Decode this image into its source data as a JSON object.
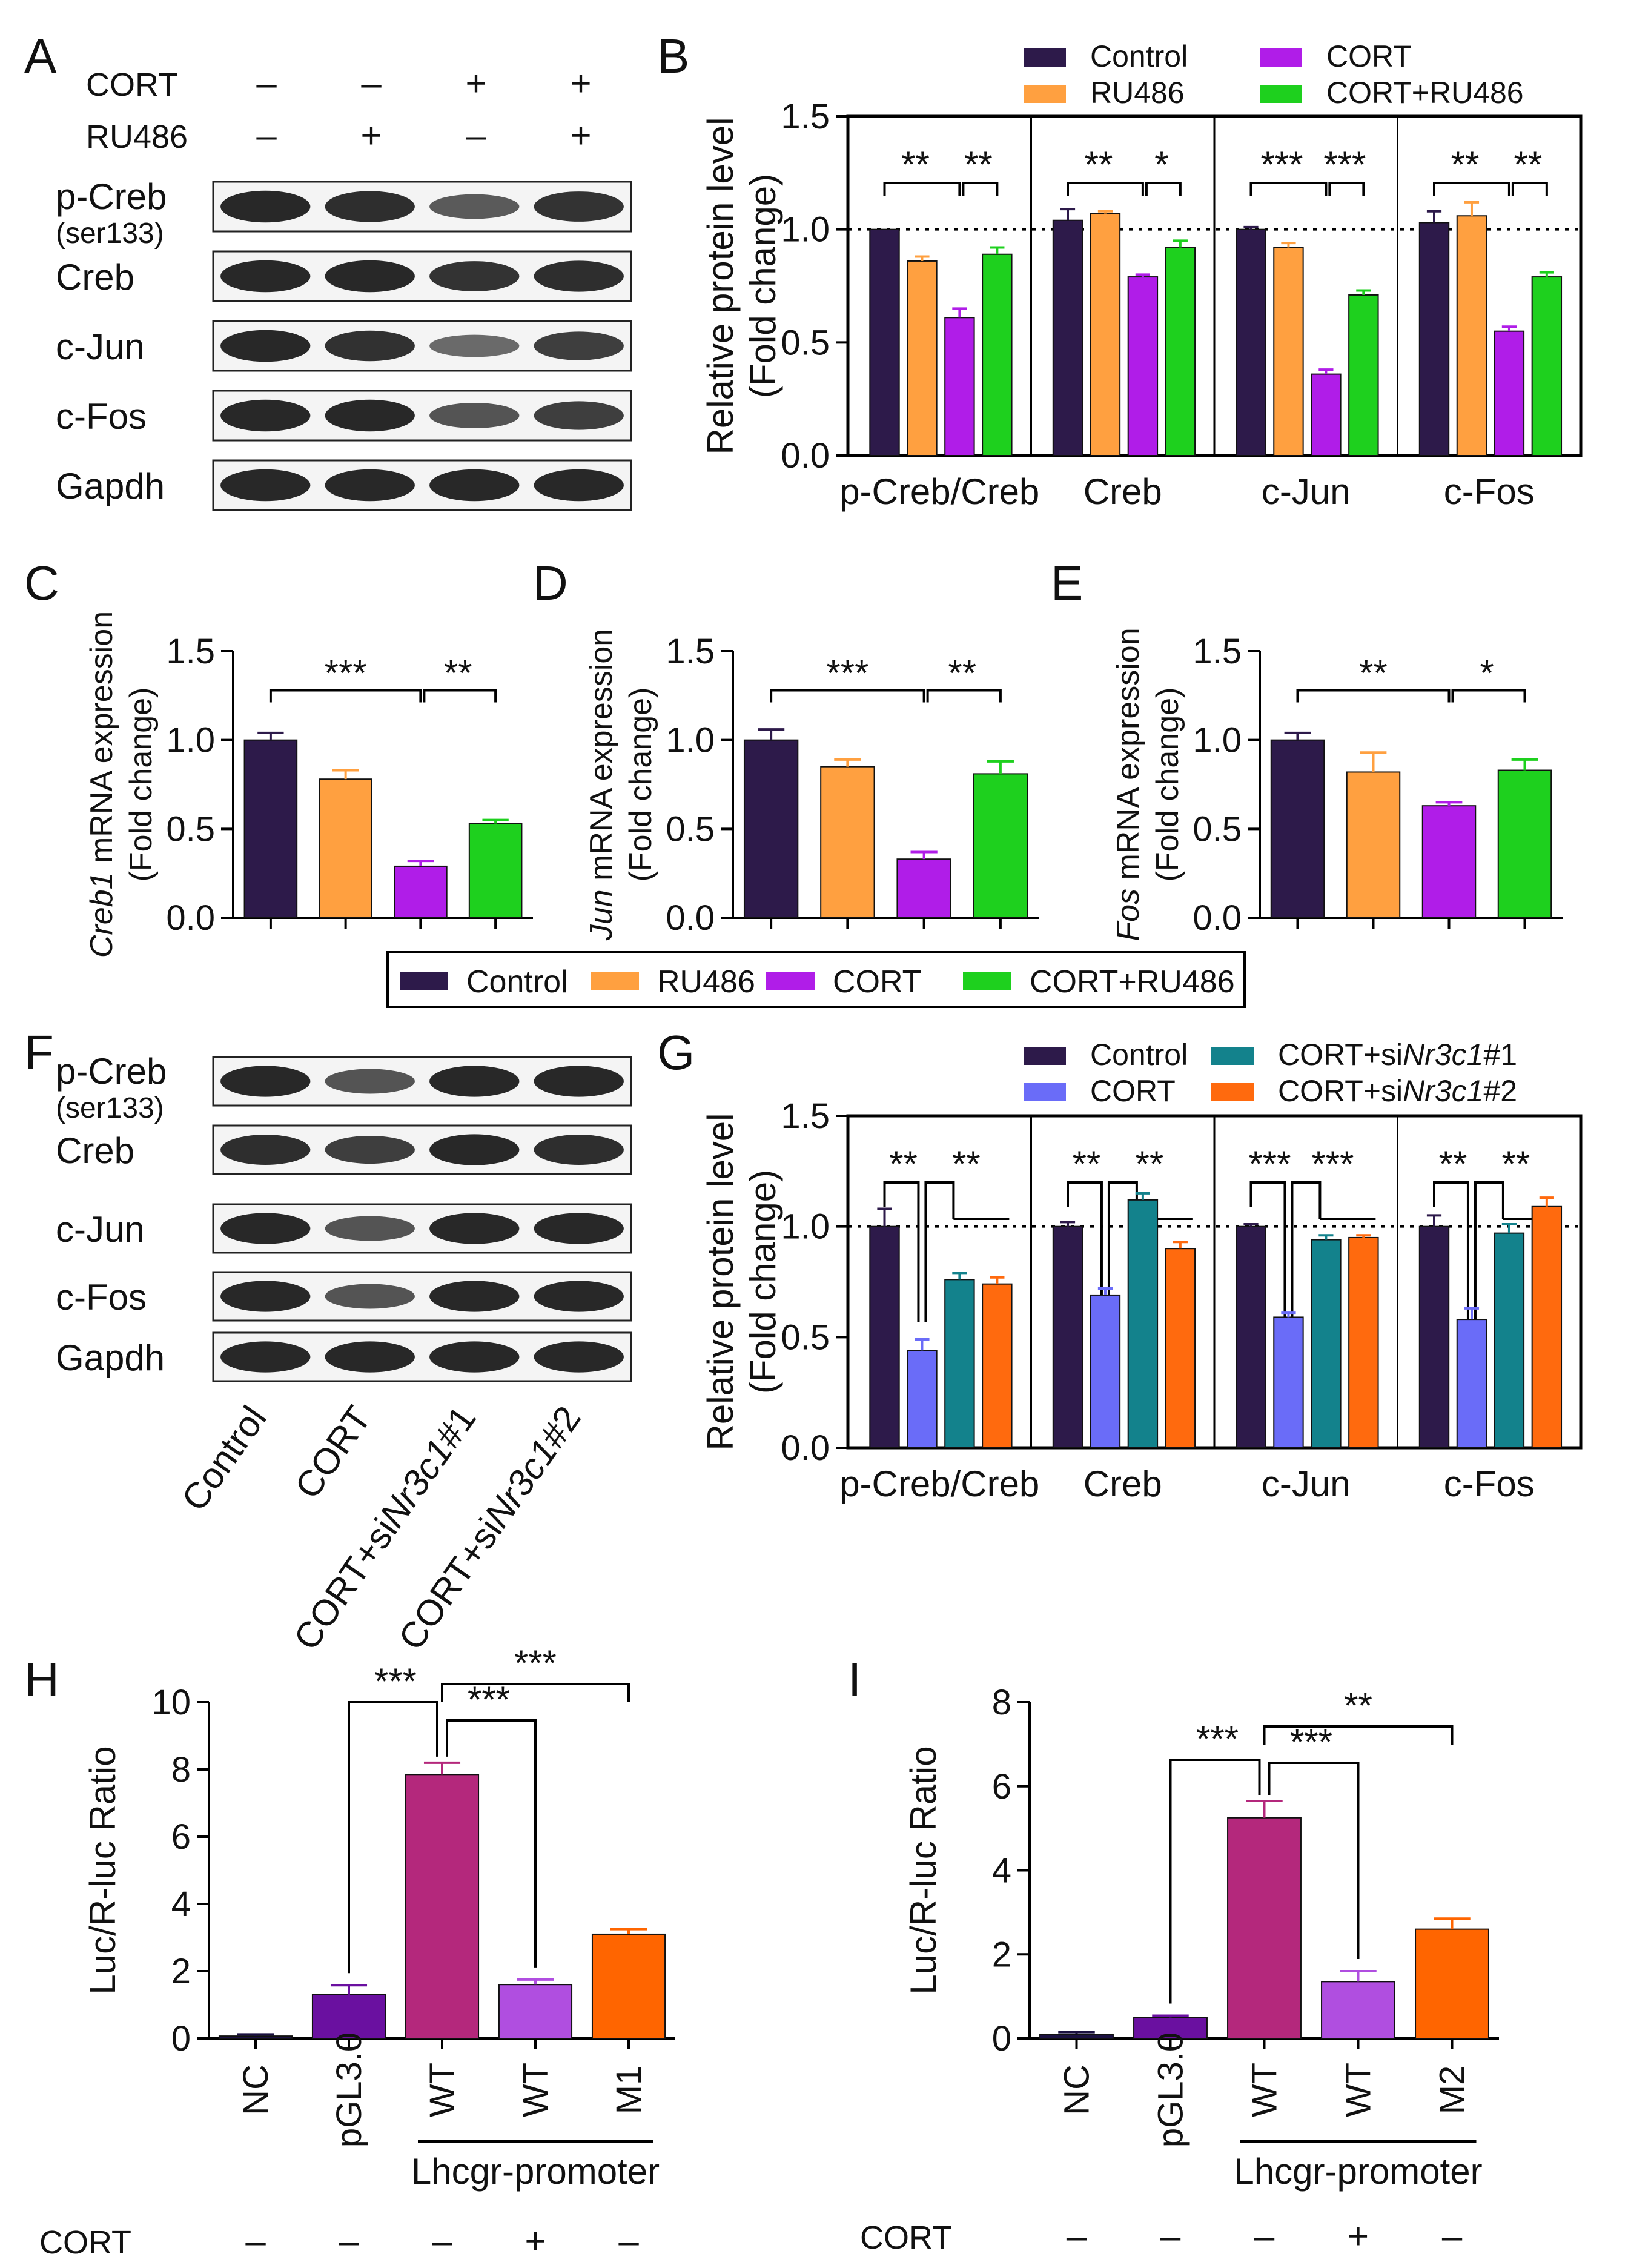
{
  "panel_letters": [
    "A",
    "B",
    "C",
    "D",
    "E",
    "F",
    "G",
    "H",
    "I"
  ],
  "colors": {
    "control": "#2d1a4a",
    "ru486": "#ffa040",
    "cort_purple": "#b01de8",
    "cort_ru486": "#1ed01e",
    "cort_blue": "#6a6cf8",
    "si1": "#13828c",
    "si2": "#ff6a0e",
    "nc": "#1a1040",
    "pgl3": "#6a10a0",
    "wt": "#b4287c",
    "wt_cort": "#b04ee0",
    "mut": "#ff6500"
  },
  "panel_A": {
    "rows": [
      {
        "label": "CORT",
        "signs": [
          "–",
          "–",
          "+",
          "+"
        ]
      },
      {
        "label": "RU486",
        "signs": [
          "–",
          "+",
          "–",
          "+"
        ]
      }
    ],
    "blots": [
      {
        "label": "p-Creb",
        "sub": "(ser133)",
        "intensity": [
          1.0,
          0.95,
          0.55,
          0.9
        ]
      },
      {
        "label": "Creb",
        "sub": "",
        "intensity": [
          1.0,
          1.0,
          0.9,
          0.95
        ]
      },
      {
        "label": "c-Jun",
        "sub": "",
        "intensity": [
          1.0,
          0.92,
          0.4,
          0.8
        ]
      },
      {
        "label": "c-Fos",
        "sub": "",
        "intensity": [
          1.0,
          1.0,
          0.6,
          0.8
        ]
      },
      {
        "label": "Gapdh",
        "sub": "",
        "intensity": [
          1.0,
          1.0,
          1.0,
          1.0
        ]
      }
    ]
  },
  "panel_F": {
    "blots": [
      {
        "label": "p-Creb",
        "sub": "(ser133)",
        "intensity": [
          1.0,
          0.6,
          1.0,
          1.0
        ]
      },
      {
        "label": "Creb",
        "sub": "",
        "intensity": [
          0.95,
          0.8,
          1.0,
          0.95
        ]
      },
      {
        "label": "c-Jun",
        "sub": "",
        "intensity": [
          1.0,
          0.6,
          1.0,
          1.0
        ]
      },
      {
        "label": "c-Fos",
        "sub": "",
        "intensity": [
          1.0,
          0.6,
          1.0,
          1.0
        ]
      },
      {
        "label": "Gapdh",
        "sub": "",
        "intensity": [
          1.0,
          1.0,
          1.0,
          1.0
        ]
      }
    ],
    "lane_labels": [
      {
        "pre": "Control",
        "it": "",
        "post": ""
      },
      {
        "pre": "CORT",
        "it": "",
        "post": ""
      },
      {
        "pre": "CORT+si",
        "it": "Nr3c1",
        "post": "#1"
      },
      {
        "pre": "CORT+si",
        "it": "Nr3c1",
        "post": "#2"
      }
    ]
  },
  "legend_CDE": [
    "Control",
    "RU486",
    "CORT",
    "CORT+RU486"
  ],
  "chart_data": [
    {
      "id": "B",
      "type": "bar",
      "ylabel": [
        "Relative protein level",
        "(Fold change)"
      ],
      "ylim": [
        0,
        1.5
      ],
      "yticks": [
        "0.0",
        "0.5",
        "1.0",
        "1.5"
      ],
      "reference_line": 1.0,
      "categories": [
        "p-Creb/Creb",
        "Creb",
        "c-Jun",
        "c-Fos"
      ],
      "series": [
        {
          "name": "Control",
          "values": [
            1.0,
            1.04,
            1.0,
            1.03
          ],
          "errors": [
            0.0,
            0.05,
            0.01,
            0.05
          ]
        },
        {
          "name": "RU486",
          "values": [
            0.86,
            1.07,
            0.92,
            1.06
          ],
          "errors": [
            0.02,
            0.01,
            0.02,
            0.06
          ]
        },
        {
          "name": "CORT",
          "values": [
            0.61,
            0.79,
            0.36,
            0.55
          ],
          "errors": [
            0.04,
            0.01,
            0.02,
            0.02
          ]
        },
        {
          "name": "CORT+RU486",
          "values": [
            0.89,
            0.92,
            0.71,
            0.79
          ],
          "errors": [
            0.03,
            0.03,
            0.02,
            0.02
          ]
        }
      ],
      "significance": [
        {
          "left": "**",
          "right": "**"
        },
        {
          "left": "**",
          "right": "*"
        },
        {
          "left": "***",
          "right": "***"
        },
        {
          "left": "**",
          "right": "**"
        }
      ]
    },
    {
      "id": "C",
      "type": "bar",
      "ylabel_italic": "Creb1",
      "ylabel_rest": " mRNA expression",
      "ylabel_sub": "(Fold change)",
      "ylim": [
        0,
        1.5
      ],
      "yticks": [
        "0.0",
        "0.5",
        "1.0",
        "1.5"
      ],
      "categories": [
        "Control",
        "RU486",
        "CORT",
        "CORT+RU486"
      ],
      "values": [
        1.0,
        0.78,
        0.29,
        0.53
      ],
      "errors": [
        0.04,
        0.05,
        0.03,
        0.02
      ],
      "significance": [
        "***",
        "**"
      ]
    },
    {
      "id": "D",
      "type": "bar",
      "ylabel_italic": "Jun",
      "ylabel_rest": " mRNA expression",
      "ylabel_sub": "(Fold change)",
      "ylim": [
        0,
        1.5
      ],
      "yticks": [
        "0.0",
        "0.5",
        "1.0",
        "1.5"
      ],
      "categories": [
        "Control",
        "RU486",
        "CORT",
        "CORT+RU486"
      ],
      "values": [
        1.0,
        0.85,
        0.33,
        0.81
      ],
      "errors": [
        0.06,
        0.04,
        0.04,
        0.07
      ],
      "significance": [
        "***",
        "**"
      ]
    },
    {
      "id": "E",
      "type": "bar",
      "ylabel_italic": "Fos",
      "ylabel_rest": " mRNA expression",
      "ylabel_sub": "(Fold change)",
      "ylim": [
        0,
        1.5
      ],
      "yticks": [
        "0.0",
        "0.5",
        "1.0",
        "1.5"
      ],
      "categories": [
        "Control",
        "RU486",
        "CORT",
        "CORT+RU486"
      ],
      "values": [
        1.0,
        0.82,
        0.63,
        0.83
      ],
      "errors": [
        0.04,
        0.11,
        0.02,
        0.06
      ],
      "significance": [
        "**",
        "*"
      ]
    },
    {
      "id": "G",
      "type": "bar",
      "ylabel": [
        "Relative protein level",
        "(Fold change)"
      ],
      "ylim": [
        0,
        1.5
      ],
      "yticks": [
        "0.0",
        "0.5",
        "1.0",
        "1.5"
      ],
      "reference_line": 1.0,
      "categories": [
        "p-Creb/Creb",
        "Creb",
        "c-Jun",
        "c-Fos"
      ],
      "series": [
        {
          "name": "Control",
          "values": [
            1.0,
            1.0,
            1.0,
            1.0
          ],
          "errors": [
            0.08,
            0.02,
            0.01,
            0.05
          ]
        },
        {
          "name": "CORT",
          "values": [
            0.44,
            0.69,
            0.59,
            0.58
          ],
          "errors": [
            0.05,
            0.03,
            0.02,
            0.05
          ]
        },
        {
          "name": "CORT+siNr3c1#1",
          "values": [
            0.76,
            1.12,
            0.94,
            0.97
          ],
          "errors": [
            0.03,
            0.03,
            0.02,
            0.04
          ]
        },
        {
          "name": "CORT+siNr3c1#2",
          "values": [
            0.74,
            0.9,
            0.95,
            1.09
          ],
          "errors": [
            0.03,
            0.03,
            0.01,
            0.04
          ]
        }
      ],
      "significance": [
        {
          "left": "**",
          "right": "**"
        },
        {
          "left": "**",
          "right": "**"
        },
        {
          "left": "***",
          "right": "***"
        },
        {
          "left": "**",
          "right": "**"
        }
      ]
    },
    {
      "id": "H",
      "type": "bar",
      "ylabel": "Luc/R-luc Ratio",
      "ylim": [
        0,
        10
      ],
      "yticks": [
        "0",
        "2",
        "4",
        "6",
        "8",
        "10"
      ],
      "categories": [
        "NC",
        "pGL3.0",
        "WT",
        "WT",
        "M1"
      ],
      "values": [
        0.07,
        1.3,
        7.85,
        1.6,
        3.1
      ],
      "errors": [
        0.05,
        0.28,
        0.35,
        0.15,
        0.15
      ],
      "group_label": "Lhcgr-promoter",
      "cort_label": "CORT",
      "cort_signs": [
        "–",
        "–",
        "–",
        "+",
        "–"
      ],
      "significance": [
        "***",
        "***",
        "***"
      ]
    },
    {
      "id": "I",
      "type": "bar",
      "ylabel": "Luc/R-luc Ratio",
      "ylim": [
        0,
        8
      ],
      "yticks": [
        "0",
        "2",
        "4",
        "6",
        "8"
      ],
      "categories": [
        "NC",
        "pGL3.0",
        "WT",
        "WT",
        "M2"
      ],
      "values": [
        0.1,
        0.5,
        5.25,
        1.35,
        2.6
      ],
      "errors": [
        0.05,
        0.04,
        0.4,
        0.25,
        0.25
      ],
      "group_label": "Lhcgr-promoter",
      "cort_label": "CORT",
      "cort_signs": [
        "–",
        "–",
        "–",
        "+",
        "–"
      ],
      "significance": [
        "***",
        "***",
        "**"
      ]
    }
  ]
}
